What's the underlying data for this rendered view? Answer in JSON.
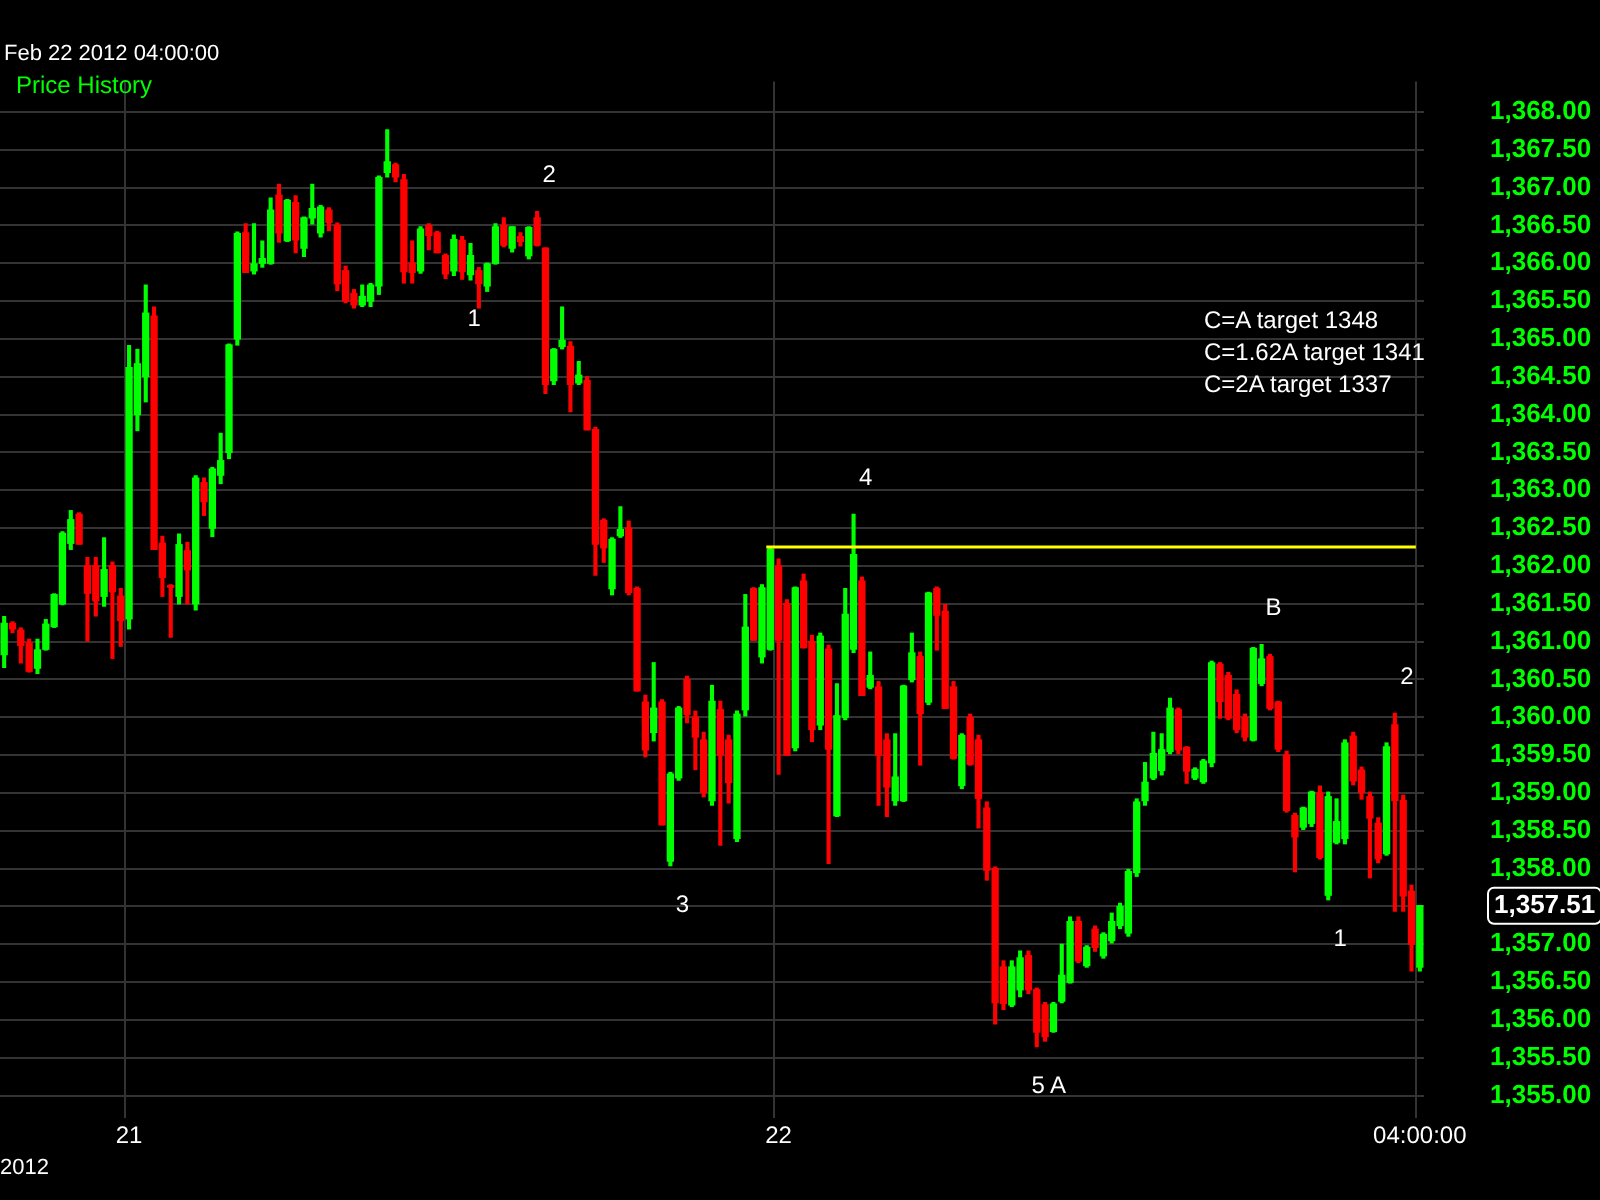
{
  "chart_data": {
    "type": "candlestick",
    "subtitle": "Feb 22 2012 04:00:00",
    "legend_title": "Price History",
    "xlabel": "2012",
    "categories": [
      null,
      null,
      null,
      null,
      null,
      null,
      null,
      null,
      null,
      null,
      null,
      null,
      null,
      null,
      null,
      "21",
      null,
      null,
      null,
      null,
      null,
      null,
      null,
      null,
      null,
      null,
      null,
      null,
      null,
      null,
      null,
      null,
      null,
      null,
      null,
      null,
      null,
      null,
      null,
      null,
      null,
      null,
      null,
      null,
      null,
      null,
      null,
      null,
      null,
      null,
      null,
      null,
      null,
      null,
      null,
      null,
      null,
      null,
      null,
      null,
      null,
      null,
      null,
      null,
      null,
      null,
      null,
      null,
      null,
      null,
      null,
      null,
      null,
      null,
      null,
      null,
      null,
      null,
      null,
      null,
      null,
      null,
      null,
      null,
      null,
      null,
      null,
      null,
      null,
      null,
      null,
      null,
      null,
      "22",
      null,
      null,
      null,
      null,
      null,
      null,
      null,
      null,
      null,
      null,
      null,
      null,
      null,
      null,
      null,
      null,
      null,
      null,
      null,
      null,
      null,
      null,
      null,
      null,
      null,
      null,
      null,
      null,
      null,
      null,
      null,
      null,
      null,
      null,
      null,
      null,
      null,
      null,
      null,
      null,
      null,
      null,
      null,
      null,
      null,
      null,
      null,
      null,
      null,
      null,
      null,
      null,
      null,
      null,
      null,
      null,
      null,
      null,
      null,
      null,
      null,
      null,
      null,
      null,
      null,
      null,
      null,
      null,
      null,
      null,
      null,
      null,
      null,
      null,
      null,
      null,
      "04:00:00"
    ],
    "ohlc": [
      [
        1360.83,
        1361.33,
        1360.66,
        1361.24
      ],
      [
        1361.24,
        1361.26,
        1361.12,
        1361.17
      ],
      [
        1361.15,
        1361.18,
        1360.72,
        1360.95
      ],
      [
        1360.98,
        1361.03,
        1360.6,
        1360.61
      ],
      [
        1360.65,
        1361.03,
        1360.58,
        1360.89
      ],
      [
        1360.9,
        1361.29,
        1360.89,
        1361.23
      ],
      [
        1361.2,
        1361.63,
        1361.19,
        1361.62
      ],
      [
        1361.5,
        1362.45,
        1361.49,
        1362.43
      ],
      [
        1362.3,
        1362.73,
        1362.22,
        1362.61
      ],
      [
        1362.68,
        1362.7,
        1362.29,
        1362.29
      ],
      [
        1362.0,
        1362.11,
        1361.01,
        1361.64
      ],
      [
        1362.0,
        1362.11,
        1361.34,
        1361.54
      ],
      [
        1361.6,
        1362.37,
        1361.47,
        1361.95
      ],
      [
        1362.0,
        1362.05,
        1360.78,
        1361.66
      ],
      [
        1361.6,
        1361.7,
        1360.94,
        1361.28
      ],
      [
        1361.3,
        1364.91,
        1361.17,
        1364.62
      ],
      [
        1364.0,
        1364.86,
        1363.79,
        1364.67
      ],
      [
        1364.5,
        1365.71,
        1364.17,
        1365.34
      ],
      [
        1365.3,
        1365.42,
        1362.22,
        1362.22
      ],
      [
        1362.3,
        1362.39,
        1361.6,
        1361.85
      ],
      [
        1361.74,
        1361.75,
        1361.06,
        1361.72
      ],
      [
        1361.6,
        1362.42,
        1361.5,
        1362.28
      ],
      [
        1362.2,
        1362.31,
        1361.5,
        1361.95
      ],
      [
        1361.5,
        1363.19,
        1361.42,
        1363.16
      ],
      [
        1363.1,
        1363.16,
        1362.67,
        1362.85
      ],
      [
        1362.5,
        1363.3,
        1362.39,
        1363.28
      ],
      [
        1363.2,
        1363.75,
        1363.09,
        1363.39
      ],
      [
        1363.5,
        1364.93,
        1363.42,
        1364.92
      ],
      [
        1365.0,
        1366.41,
        1364.92,
        1366.39
      ],
      [
        1366.4,
        1366.52,
        1365.88,
        1365.88
      ],
      [
        1365.9,
        1366.52,
        1365.86,
        1365.99
      ],
      [
        1366.0,
        1366.29,
        1365.95,
        1366.06
      ],
      [
        1366.0,
        1366.86,
        1365.99,
        1366.7
      ],
      [
        1366.9,
        1367.04,
        1366.28,
        1366.4
      ],
      [
        1366.3,
        1366.84,
        1366.29,
        1366.83
      ],
      [
        1366.8,
        1366.89,
        1366.14,
        1366.31
      ],
      [
        1366.2,
        1366.61,
        1366.09,
        1366.6
      ],
      [
        1366.6,
        1367.04,
        1366.52,
        1366.72
      ],
      [
        1366.4,
        1366.76,
        1366.35,
        1366.74
      ],
      [
        1366.7,
        1366.73,
        1366.43,
        1366.54
      ],
      [
        1366.5,
        1366.53,
        1365.64,
        1365.73
      ],
      [
        1365.9,
        1365.96,
        1365.48,
        1365.5
      ],
      [
        1365.6,
        1365.65,
        1365.41,
        1365.45
      ],
      [
        1365.45,
        1365.71,
        1365.43,
        1365.56
      ],
      [
        1365.5,
        1365.73,
        1365.43,
        1365.71
      ],
      [
        1365.7,
        1367.15,
        1365.59,
        1367.13
      ],
      [
        1367.2,
        1367.76,
        1367.14,
        1367.34
      ],
      [
        1367.3,
        1367.32,
        1367.08,
        1367.14
      ],
      [
        1367.1,
        1367.17,
        1365.74,
        1365.89
      ],
      [
        1366.0,
        1366.29,
        1365.74,
        1365.88
      ],
      [
        1365.9,
        1366.48,
        1365.87,
        1366.45
      ],
      [
        1366.5,
        1366.52,
        1366.18,
        1366.37
      ],
      [
        1366.4,
        1366.42,
        1366.14,
        1366.14
      ],
      [
        1366.1,
        1366.12,
        1365.8,
        1365.86
      ],
      [
        1365.9,
        1366.37,
        1365.84,
        1366.31
      ],
      [
        1366.3,
        1366.35,
        1365.79,
        1365.89
      ],
      [
        1365.85,
        1366.26,
        1365.78,
        1366.1
      ],
      [
        1365.9,
        1365.94,
        1365.41,
        1365.73
      ],
      [
        1365.7,
        1366.0,
        1365.63,
        1365.99
      ],
      [
        1366.0,
        1366.52,
        1365.99,
        1366.48
      ],
      [
        1366.5,
        1366.6,
        1366.22,
        1366.24
      ],
      [
        1366.2,
        1366.48,
        1366.15,
        1366.48
      ],
      [
        1366.35,
        1366.4,
        1366.23,
        1366.29
      ],
      [
        1366.1,
        1366.48,
        1366.06,
        1366.47
      ],
      [
        1366.6,
        1366.68,
        1366.23,
        1366.24
      ],
      [
        1366.2,
        1366.2,
        1364.28,
        1364.4
      ],
      [
        1364.45,
        1364.87,
        1364.4,
        1364.86
      ],
      [
        1364.9,
        1365.42,
        1364.87,
        1364.98
      ],
      [
        1364.9,
        1364.96,
        1364.04,
        1364.4
      ],
      [
        1364.42,
        1364.7,
        1364.4,
        1364.52
      ],
      [
        1364.45,
        1364.5,
        1363.8,
        1363.8
      ],
      [
        1363.8,
        1363.83,
        1361.88,
        1362.29
      ],
      [
        1362.6,
        1362.62,
        1362.05,
        1362.24
      ],
      [
        1361.7,
        1362.37,
        1361.62,
        1362.35
      ],
      [
        1362.4,
        1362.78,
        1362.38,
        1362.48
      ],
      [
        1362.5,
        1362.59,
        1361.62,
        1361.65
      ],
      [
        1361.7,
        1361.72,
        1360.35,
        1360.35
      ],
      [
        1360.2,
        1360.29,
        1359.48,
        1359.57
      ],
      [
        1359.8,
        1360.72,
        1359.69,
        1360.12
      ],
      [
        1360.2,
        1360.23,
        1358.58,
        1358.58
      ],
      [
        1358.1,
        1359.27,
        1358.04,
        1359.25
      ],
      [
        1359.2,
        1360.14,
        1359.17,
        1360.12
      ],
      [
        1360.5,
        1360.54,
        1359.93,
        1360.04
      ],
      [
        1360.0,
        1360.08,
        1359.31,
        1359.74
      ],
      [
        1359.7,
        1359.8,
        1358.95,
        1359.01
      ],
      [
        1358.9,
        1360.42,
        1358.84,
        1360.21
      ],
      [
        1360.1,
        1360.21,
        1358.31,
        1359.5
      ],
      [
        1359.7,
        1359.76,
        1358.87,
        1359.14
      ],
      [
        1358.4,
        1360.08,
        1358.36,
        1360.04
      ],
      [
        1360.1,
        1361.62,
        1360.02,
        1361.19
      ],
      [
        1361.7,
        1361.71,
        1361.02,
        1361.02
      ],
      [
        1360.8,
        1361.75,
        1360.72,
        1361.71
      ],
      [
        1360.9,
        1362.24,
        1360.89,
        1362.22
      ],
      [
        1362.0,
        1362.09,
        1359.25,
        1361.02
      ],
      [
        1361.5,
        1361.55,
        1359.5,
        1359.5
      ],
      [
        1359.6,
        1361.72,
        1359.56,
        1361.71
      ],
      [
        1361.8,
        1361.89,
        1360.92,
        1360.92
      ],
      [
        1361.0,
        1361.08,
        1359.68,
        1359.84
      ],
      [
        1359.9,
        1361.11,
        1359.84,
        1361.07
      ],
      [
        1360.9,
        1360.95,
        1358.07,
        1359.58
      ],
      [
        1358.7,
        1360.44,
        1358.69,
        1360.02
      ],
      [
        1360.0,
        1361.7,
        1359.97,
        1361.36
      ],
      [
        1360.9,
        1362.68,
        1360.86,
        1362.15
      ],
      [
        1361.8,
        1361.85,
        1360.29,
        1360.29
      ],
      [
        1360.4,
        1360.86,
        1360.38,
        1360.55
      ],
      [
        1360.4,
        1360.47,
        1358.84,
        1359.5
      ],
      [
        1359.7,
        1359.78,
        1358.69,
        1359.08
      ],
      [
        1358.9,
        1359.78,
        1358.84,
        1359.21
      ],
      [
        1358.9,
        1360.42,
        1358.89,
        1360.41
      ],
      [
        1360.5,
        1361.11,
        1360.47,
        1360.85
      ],
      [
        1360.8,
        1360.86,
        1359.37,
        1360.05
      ],
      [
        1360.2,
        1361.65,
        1360.17,
        1361.64
      ],
      [
        1361.7,
        1361.72,
        1360.89,
        1361.35
      ],
      [
        1361.4,
        1361.49,
        1360.12,
        1360.12
      ],
      [
        1360.4,
        1360.47,
        1359.45,
        1359.46
      ],
      [
        1359.1,
        1359.78,
        1359.06,
        1359.76
      ],
      [
        1360.0,
        1360.04,
        1359.37,
        1359.38
      ],
      [
        1359.7,
        1359.76,
        1358.54,
        1358.93
      ],
      [
        1358.8,
        1358.88,
        1357.85,
        1357.98
      ],
      [
        1358.0,
        1358.02,
        1355.95,
        1356.23
      ],
      [
        1356.7,
        1356.78,
        1356.14,
        1356.22
      ],
      [
        1356.2,
        1356.78,
        1356.18,
        1356.7
      ],
      [
        1356.4,
        1356.91,
        1356.31,
        1356.82
      ],
      [
        1356.85,
        1356.91,
        1356.35,
        1356.4
      ],
      [
        1356.4,
        1356.42,
        1355.65,
        1355.84
      ],
      [
        1356.2,
        1356.23,
        1355.72,
        1355.78
      ],
      [
        1355.85,
        1356.23,
        1355.84,
        1356.21
      ],
      [
        1356.25,
        1357.0,
        1356.23,
        1356.59
      ],
      [
        1356.5,
        1357.36,
        1356.49,
        1357.3
      ],
      [
        1357.3,
        1357.36,
        1356.76,
        1356.78
      ],
      [
        1356.72,
        1356.98,
        1356.7,
        1356.96
      ],
      [
        1357.2,
        1357.24,
        1356.91,
        1356.96
      ],
      [
        1356.85,
        1357.15,
        1356.82,
        1357.13
      ],
      [
        1357.05,
        1357.41,
        1357.02,
        1357.3
      ],
      [
        1357.25,
        1357.54,
        1357.21,
        1357.5
      ],
      [
        1357.15,
        1357.99,
        1357.11,
        1357.96
      ],
      [
        1357.95,
        1358.92,
        1357.9,
        1358.88
      ],
      [
        1358.9,
        1359.4,
        1358.84,
        1359.14
      ],
      [
        1359.2,
        1359.8,
        1359.18,
        1359.52
      ],
      [
        1359.3,
        1359.78,
        1359.24,
        1359.57
      ],
      [
        1359.55,
        1360.25,
        1359.52,
        1360.12
      ],
      [
        1360.1,
        1360.12,
        1359.52,
        1359.57
      ],
      [
        1359.6,
        1359.61,
        1359.13,
        1359.29
      ],
      [
        1359.2,
        1359.33,
        1359.18,
        1359.31
      ],
      [
        1359.15,
        1359.44,
        1359.13,
        1359.42
      ],
      [
        1359.4,
        1360.74,
        1359.35,
        1360.72
      ],
      [
        1360.7,
        1360.72,
        1359.99,
        1360.21
      ],
      [
        1360.55,
        1360.59,
        1359.97,
        1359.99
      ],
      [
        1360.3,
        1360.36,
        1359.8,
        1359.84
      ],
      [
        1360.0,
        1360.04,
        1359.69,
        1359.74
      ],
      [
        1359.7,
        1360.92,
        1359.69,
        1360.91
      ],
      [
        1360.45,
        1360.96,
        1360.42,
        1360.77
      ],
      [
        1360.8,
        1360.83,
        1360.1,
        1360.12
      ],
      [
        1360.2,
        1360.21,
        1359.55,
        1359.58
      ],
      [
        1359.5,
        1359.55,
        1358.75,
        1358.77
      ],
      [
        1358.7,
        1358.73,
        1357.96,
        1358.42
      ],
      [
        1358.55,
        1358.81,
        1358.52,
        1358.8
      ],
      [
        1358.6,
        1359.02,
        1358.56,
        1359.01
      ],
      [
        1359.0,
        1359.09,
        1358.13,
        1358.15
      ],
      [
        1357.65,
        1359.01,
        1357.59,
        1358.95
      ],
      [
        1358.35,
        1358.92,
        1358.33,
        1358.62
      ],
      [
        1358.4,
        1359.7,
        1358.33,
        1359.66
      ],
      [
        1359.75,
        1359.8,
        1359.11,
        1359.16
      ],
      [
        1359.3,
        1359.34,
        1358.92,
        1359.01
      ],
      [
        1358.95,
        1359.01,
        1357.88,
        1358.67
      ],
      [
        1358.6,
        1358.67,
        1358.08,
        1358.13
      ],
      [
        1358.2,
        1359.66,
        1358.18,
        1359.61
      ],
      [
        1359.9,
        1360.05,
        1357.44,
        1358.9
      ],
      [
        1358.9,
        1358.97,
        1357.44,
        1357.64
      ],
      [
        1357.7,
        1357.78,
        1356.65,
        1357.0
      ],
      [
        1356.7,
        1357.51,
        1356.65,
        1357.51
      ]
    ],
    "colors": [
      "#00ff00",
      "#ff0000",
      "#ff0000",
      "#ff0000",
      "#00ff00",
      "#00ff00",
      "#00ff00",
      "#00ff00",
      "#00ff00",
      "#ff0000",
      "#ff0000",
      "#ff0000",
      "#00ff00",
      "#ff0000",
      "#ff0000",
      "#00ff00",
      "#00ff00",
      "#00ff00",
      "#ff0000",
      "#ff0000",
      "#ff0000",
      "#00ff00",
      "#ff0000",
      "#00ff00",
      "#ff0000",
      "#00ff00",
      "#00ff00",
      "#00ff00",
      "#00ff00",
      "#ff0000",
      "#00ff00",
      "#00ff00",
      "#00ff00",
      "#ff0000",
      "#00ff00",
      "#ff0000",
      "#00ff00",
      "#00ff00",
      "#00ff00",
      "#ff0000",
      "#ff0000",
      "#ff0000",
      "#ff0000",
      "#00ff00",
      "#00ff00",
      "#00ff00",
      "#00ff00",
      "#ff0000",
      "#ff0000",
      "#ff0000",
      "#00ff00",
      "#ff0000",
      "#ff0000",
      "#ff0000",
      "#00ff00",
      "#ff0000",
      "#00ff00",
      "#ff0000",
      "#00ff00",
      "#00ff00",
      "#ff0000",
      "#00ff00",
      "#ff0000",
      "#00ff00",
      "#ff0000",
      "#ff0000",
      "#00ff00",
      "#00ff00",
      "#ff0000",
      "#00ff00",
      "#ff0000",
      "#ff0000",
      "#ff0000",
      "#00ff00",
      "#00ff00",
      "#ff0000",
      "#ff0000",
      "#ff0000",
      "#00ff00",
      "#ff0000",
      "#00ff00",
      "#00ff00",
      "#ff0000",
      "#ff0000",
      "#ff0000",
      "#00ff00",
      "#ff0000",
      "#ff0000",
      "#00ff00",
      "#00ff00",
      "#ff0000",
      "#00ff00",
      "#00ff00",
      "#ff0000",
      "#ff0000",
      "#00ff00",
      "#ff0000",
      "#ff0000",
      "#00ff00",
      "#ff0000",
      "#00ff00",
      "#00ff00",
      "#00ff00",
      "#ff0000",
      "#00ff00",
      "#ff0000",
      "#ff0000",
      "#00ff00",
      "#00ff00",
      "#00ff00",
      "#ff0000",
      "#00ff00",
      "#ff0000",
      "#ff0000",
      "#ff0000",
      "#00ff00",
      "#ff0000",
      "#ff0000",
      "#ff0000",
      "#ff0000",
      "#ff0000",
      "#00ff00",
      "#00ff00",
      "#ff0000",
      "#ff0000",
      "#ff0000",
      "#00ff00",
      "#00ff00",
      "#00ff00",
      "#ff0000",
      "#00ff00",
      "#ff0000",
      "#00ff00",
      "#00ff00",
      "#00ff00",
      "#00ff00",
      "#00ff00",
      "#00ff00",
      "#00ff00",
      "#00ff00",
      "#00ff00",
      "#ff0000",
      "#ff0000",
      "#00ff00",
      "#00ff00",
      "#00ff00",
      "#ff0000",
      "#ff0000",
      "#ff0000",
      "#ff0000",
      "#00ff00",
      "#00ff00",
      "#ff0000",
      "#ff0000",
      "#ff0000",
      "#ff0000",
      "#00ff00",
      "#00ff00",
      "#ff0000",
      "#00ff00",
      "#00ff00",
      "#00ff00",
      "#ff0000",
      "#ff0000",
      "#ff0000",
      "#ff0000",
      "#00ff00",
      "#ff0000",
      "#ff0000",
      "#ff0000",
      "#00ff00"
    ],
    "ylim": [
      1354.7,
      1368.4
    ],
    "yticks": [
      {
        "value": 1355,
        "label": "1,355.00"
      },
      {
        "value": 1355.5,
        "label": "1,355.50"
      },
      {
        "value": 1356,
        "label": "1,356.00"
      },
      {
        "value": 1356.5,
        "label": "1,356.50"
      },
      {
        "value": 1357,
        "label": "1,357.00"
      },
      {
        "value": 1357.5,
        "label": null
      },
      {
        "value": 1358,
        "label": "1,358.00"
      },
      {
        "value": 1358.5,
        "label": "1,358.50"
      },
      {
        "value": 1359,
        "label": "1,359.00"
      },
      {
        "value": 1359.5,
        "label": "1,359.50"
      },
      {
        "value": 1360,
        "label": "1,360.00"
      },
      {
        "value": 1360.5,
        "label": "1,360.50"
      },
      {
        "value": 1361,
        "label": "1,361.00"
      },
      {
        "value": 1361.5,
        "label": "1,361.50"
      },
      {
        "value": 1362,
        "label": "1,362.00"
      },
      {
        "value": 1362.5,
        "label": "1,362.50"
      },
      {
        "value": 1363,
        "label": "1,363.00"
      },
      {
        "value": 1363.5,
        "label": "1,363.50"
      },
      {
        "value": 1364,
        "label": "1,364.00"
      },
      {
        "value": 1364.5,
        "label": "1,364.50"
      },
      {
        "value": 1365,
        "label": "1,365.00"
      },
      {
        "value": 1365.5,
        "label": "1,365.50"
      },
      {
        "value": 1366,
        "label": "1,366.00"
      },
      {
        "value": 1366.5,
        "label": "1,366.50"
      },
      {
        "value": 1367,
        "label": "1,367.00"
      },
      {
        "value": 1367.5,
        "label": "1,367.50"
      },
      {
        "value": 1368,
        "label": "1,368.00"
      }
    ],
    "grid": true,
    "ref_lines": [
      {
        "axis": "y",
        "value": 1362.25,
        "color": "#ffff00"
      }
    ],
    "annotations": [
      "C=A target 1348",
      "C=1.62A target 1341",
      "C=2A target 1337",
      {
        "text": "1",
        "y": 1365.79
      },
      {
        "text": "2",
        "y": 1366.68
      },
      {
        "text": "3",
        "y": 1358.04
      },
      {
        "text": "4",
        "y": 1362.68
      },
      {
        "text": "5 A",
        "y": 1355.65
      },
      {
        "text": "B",
        "y": 1360.96
      },
      {
        "text": "1",
        "y": 1357.59
      },
      {
        "text": "2",
        "y": 1360.05
      },
      "1,357.51"
    ]
  }
}
